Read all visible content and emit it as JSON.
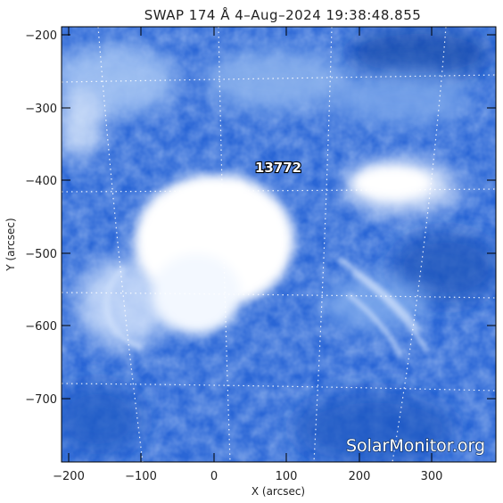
{
  "title": "SWAP 174 Å  4–Aug–2024 19:38:48.855",
  "region_label": "13772",
  "credit": "SolarMonitor.org",
  "axes": {
    "xlabel": "X (arcsec)",
    "ylabel": "Y (arcsec)",
    "x_ticks": [
      "−200",
      "−100",
      "0",
      "100",
      "200",
      "300"
    ],
    "y_ticks": [
      "−200",
      "−300",
      "−400",
      "−500",
      "−600",
      "−700"
    ]
  },
  "colors": {
    "background_blue": "#1f5fd0",
    "bright": "#ffffff",
    "axis": "#000000"
  }
}
